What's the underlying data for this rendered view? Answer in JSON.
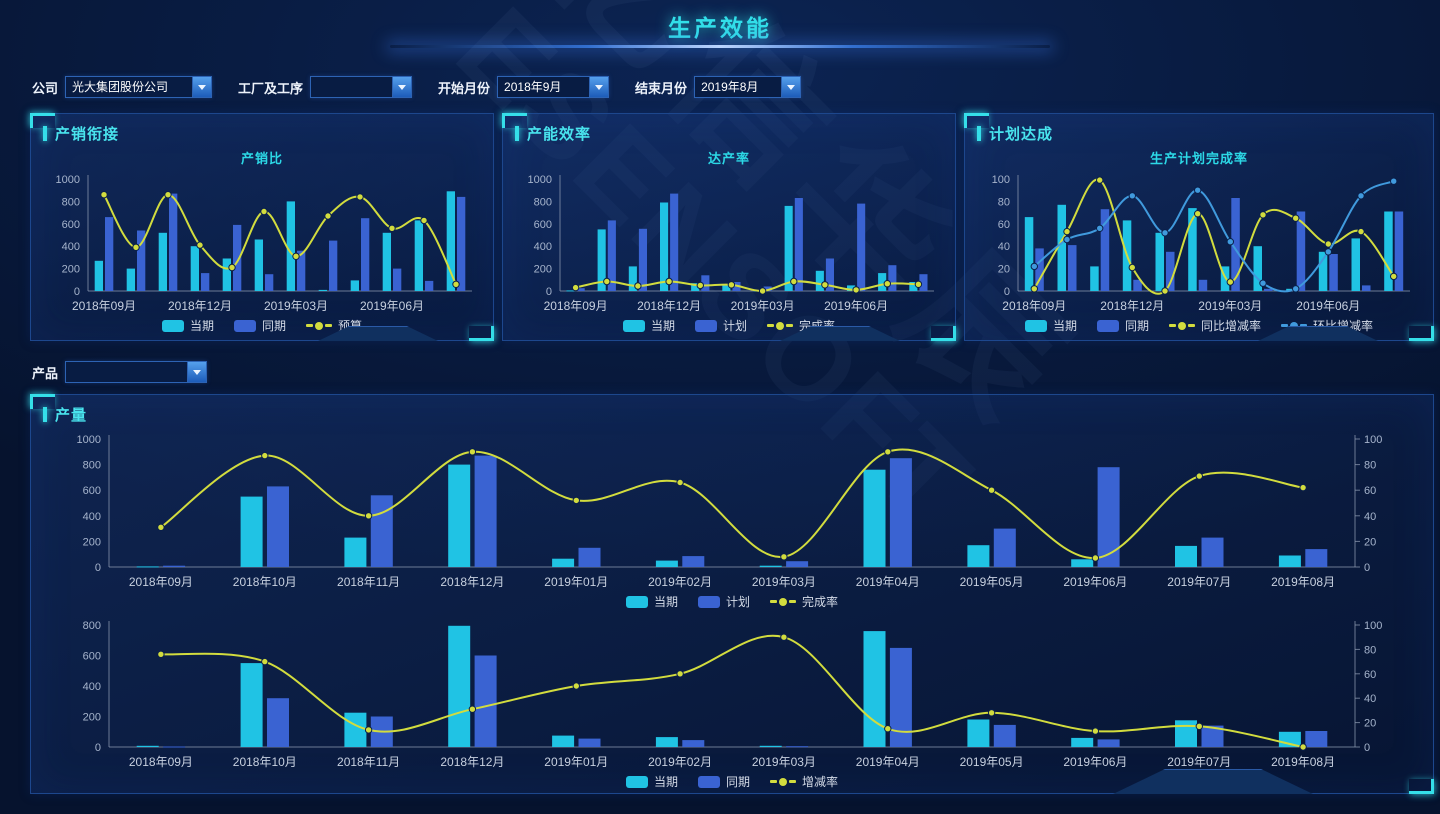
{
  "page": {
    "title": "生产效能"
  },
  "watermark": {
    "line1": "亿信华辰",
    "line2": "ESENSOFT"
  },
  "colors": {
    "accent_cyan": "#32dfe9",
    "bar_current": "#20c3e4",
    "bar_compare": "#3a63d2",
    "line_yellow": "#d2dc3e",
    "line_blue": "#409add"
  },
  "filters": {
    "company": {
      "label": "公司",
      "value": "光大集团股份公司"
    },
    "factory": {
      "label": "工厂及工序",
      "value": ""
    },
    "start_month": {
      "label": "开始月份",
      "value": "2018年9月"
    },
    "end_month": {
      "label": "结束月份",
      "value": "2019年8月"
    },
    "product": {
      "label": "产品",
      "value": ""
    }
  },
  "panels": [
    {
      "header": "产销衔接"
    },
    {
      "header": "产能效率"
    },
    {
      "header": "计划达成"
    },
    {
      "header": "产量"
    }
  ],
  "chart_data": [
    {
      "id": "production-sales-ratio",
      "type": "bar",
      "title": "产销比",
      "categories": [
        "2018年09月",
        "2018年10月",
        "2018年11月",
        "2018年12月",
        "2019年01月",
        "2019年02月",
        "2019年03月",
        "2019年04月",
        "2019年05月",
        "2019年06月",
        "2019年07月",
        "2019年08月"
      ],
      "ylim": [
        0,
        1000
      ],
      "ytick_step": 200,
      "x_label_every": 3,
      "grid": false,
      "legend_position": "bottom",
      "series": [
        {
          "name": "当期",
          "type": "bar",
          "color": "#20c3e4",
          "axis": "left",
          "values": [
            270,
            200,
            520,
            400,
            290,
            460,
            800,
            10,
            95,
            520,
            630,
            890
          ]
        },
        {
          "name": "同期",
          "type": "bar",
          "color": "#3a63d2",
          "axis": "left",
          "values": [
            660,
            540,
            870,
            160,
            590,
            150,
            360,
            450,
            650,
            200,
            90,
            840
          ]
        },
        {
          "name": "预算",
          "type": "line",
          "color": "#d2dc3e",
          "axis": "left",
          "values": [
            860,
            390,
            860,
            410,
            210,
            710,
            310,
            670,
            840,
            560,
            630,
            60
          ]
        }
      ]
    },
    {
      "id": "capacity-rate",
      "type": "bar",
      "title": "达产率",
      "categories": [
        "2018年09月",
        "2018年10月",
        "2018年11月",
        "2018年12月",
        "2019年01月",
        "2019年02月",
        "2019年03月",
        "2019年04月",
        "2019年05月",
        "2019年06月",
        "2019年07月",
        "2019年08月"
      ],
      "ylim": [
        0,
        1000
      ],
      "ytick_step": 200,
      "x_label_every": 3,
      "grid": false,
      "legend_position": "bottom",
      "series": [
        {
          "name": "当期",
          "type": "bar",
          "color": "#20c3e4",
          "axis": "left",
          "values": [
            5,
            550,
            220,
            790,
            70,
            60,
            5,
            760,
            180,
            50,
            160,
            80
          ]
        },
        {
          "name": "计划",
          "type": "bar",
          "color": "#3a63d2",
          "axis": "left",
          "values": [
            25,
            630,
            555,
            870,
            140,
            80,
            40,
            830,
            290,
            780,
            230,
            150
          ]
        },
        {
          "name": "完成率",
          "type": "line",
          "color": "#d2dc3e",
          "axis": "left",
          "values": [
            30,
            85,
            45,
            85,
            50,
            55,
            0,
            85,
            55,
            10,
            65,
            60
          ]
        }
      ]
    },
    {
      "id": "plan-completion",
      "type": "bar",
      "title": "生产计划完成率",
      "categories": [
        "2018年09月",
        "2018年10月",
        "2018年11月",
        "2018年12月",
        "2019年01月",
        "2019年02月",
        "2019年03月",
        "2019年04月",
        "2019年05月",
        "2019年06月",
        "2019年07月",
        "2019年08月"
      ],
      "ylim": [
        0,
        100
      ],
      "ytick_step": 20,
      "x_label_every": 3,
      "grid": false,
      "legend_position": "bottom",
      "series": [
        {
          "name": "当期",
          "type": "bar",
          "color": "#20c3e4",
          "axis": "left",
          "values": [
            66,
            77,
            22,
            63,
            52,
            74,
            22,
            40,
            2,
            35,
            47,
            71
          ]
        },
        {
          "name": "同期",
          "type": "bar",
          "color": "#3a63d2",
          "axis": "left",
          "values": [
            38,
            41,
            73,
            10,
            35,
            10,
            83,
            2,
            71,
            33,
            5,
            71
          ]
        },
        {
          "name": "同比增减率",
          "type": "line",
          "color": "#d2dc3e",
          "axis": "left",
          "values": [
            2,
            53,
            99,
            21,
            0,
            69,
            8,
            68,
            65,
            42,
            53,
            13
          ]
        },
        {
          "name": "环比增减率",
          "type": "line",
          "color": "#409add",
          "axis": "left",
          "values": [
            22,
            46,
            56,
            85,
            52,
            90,
            44,
            7,
            2,
            35,
            85,
            98
          ]
        }
      ]
    },
    {
      "id": "output-vs-plan",
      "type": "bar",
      "title": "",
      "categories": [
        "2018年09月",
        "2018年10月",
        "2018年11月",
        "2018年12月",
        "2019年01月",
        "2019年02月",
        "2019年03月",
        "2019年04月",
        "2019年05月",
        "2019年06月",
        "2019年07月",
        "2019年08月"
      ],
      "ylim": [
        0,
        1000
      ],
      "ytick_step": 200,
      "ylim_right": [
        0,
        100
      ],
      "ytick_step_right": 20,
      "x_label_every": 1,
      "grid": false,
      "legend_position": "bottom",
      "series": [
        {
          "name": "当期",
          "type": "bar",
          "color": "#20c3e4",
          "axis": "left",
          "values": [
            5,
            550,
            230,
            800,
            65,
            50,
            10,
            760,
            170,
            60,
            165,
            90
          ]
        },
        {
          "name": "计划",
          "type": "bar",
          "color": "#3a63d2",
          "axis": "left",
          "values": [
            10,
            630,
            560,
            870,
            150,
            85,
            45,
            850,
            300,
            780,
            230,
            140
          ]
        },
        {
          "name": "完成率",
          "type": "line",
          "color": "#d2dc3e",
          "axis": "right",
          "values": [
            31,
            87,
            40,
            90,
            52,
            66,
            8,
            90,
            60,
            7,
            71,
            62
          ]
        }
      ]
    },
    {
      "id": "output-vs-lastyear",
      "type": "bar",
      "title": "",
      "categories": [
        "2018年09月",
        "2018年10月",
        "2018年11月",
        "2018年12月",
        "2019年01月",
        "2019年02月",
        "2019年03月",
        "2019年04月",
        "2019年05月",
        "2019年06月",
        "2019年07月",
        "2019年08月"
      ],
      "ylim": [
        0,
        800
      ],
      "ytick_step": 200,
      "ylim_right": [
        0,
        100
      ],
      "ytick_step_right": 20,
      "x_label_every": 1,
      "grid": false,
      "legend_position": "bottom",
      "series": [
        {
          "name": "当期",
          "type": "bar",
          "color": "#20c3e4",
          "axis": "left",
          "values": [
            8,
            550,
            225,
            795,
            75,
            65,
            8,
            760,
            180,
            60,
            175,
            100
          ]
        },
        {
          "name": "同期",
          "type": "bar",
          "color": "#3a63d2",
          "axis": "left",
          "values": [
            3,
            320,
            200,
            600,
            55,
            45,
            5,
            650,
            145,
            50,
            140,
            105
          ]
        },
        {
          "name": "增减率",
          "type": "line",
          "color": "#d2dc3e",
          "axis": "right",
          "values": [
            76,
            70,
            14,
            31,
            50,
            60,
            90,
            15,
            28,
            13,
            17,
            0
          ]
        }
      ]
    }
  ]
}
